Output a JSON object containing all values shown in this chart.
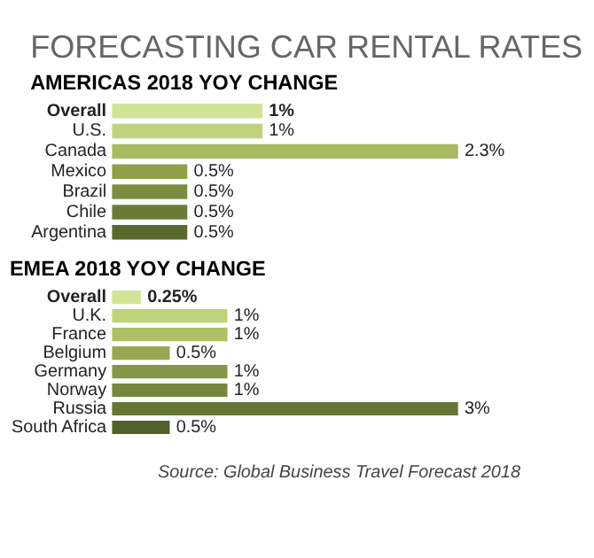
{
  "chart_data": [
    {
      "type": "bar",
      "orientation": "horizontal",
      "title": "FORECASTING CAR RENTAL RATES",
      "subtitle": "AMERICAS 2018 YOY CHANGE",
      "categories": [
        "Overall",
        "U.S.",
        "Canada",
        "Mexico",
        "Brazil",
        "Chile",
        "Argentina"
      ],
      "values": [
        1,
        1,
        2.3,
        0.5,
        0.5,
        0.5,
        0.5
      ],
      "value_labels": [
        "1%",
        "1%",
        "2.3%",
        "0.5%",
        "0.5%",
        "0.5%",
        "0.5%"
      ],
      "colors": [
        "#d3e396",
        "#c0d27c",
        "#a9ba60",
        "#8f9f4a",
        "#7c8c40",
        "#6b7b36",
        "#5a692c"
      ]
    },
    {
      "type": "bar",
      "orientation": "horizontal",
      "title": "EMEA 2018 YOY CHANGE",
      "categories": [
        "Overall",
        "U.K.",
        "France",
        "Belgium",
        "Germany",
        "Norway",
        "Russia",
        "South Africa"
      ],
      "values": [
        0.25,
        1,
        1,
        0.5,
        1,
        1,
        3,
        0.5
      ],
      "value_labels": [
        "0.25%",
        "1%",
        "1%",
        "0.5%",
        "1%",
        "1%",
        "3%",
        "0.5%"
      ],
      "colors": [
        "#d3e396",
        "#c0d27c",
        "#adbe64",
        "#98a852",
        "#869648",
        "#76863e",
        "#667634",
        "#52602a"
      ],
      "annotations": [
        "Source: Global Business Travel Forecast 2018"
      ]
    }
  ]
}
